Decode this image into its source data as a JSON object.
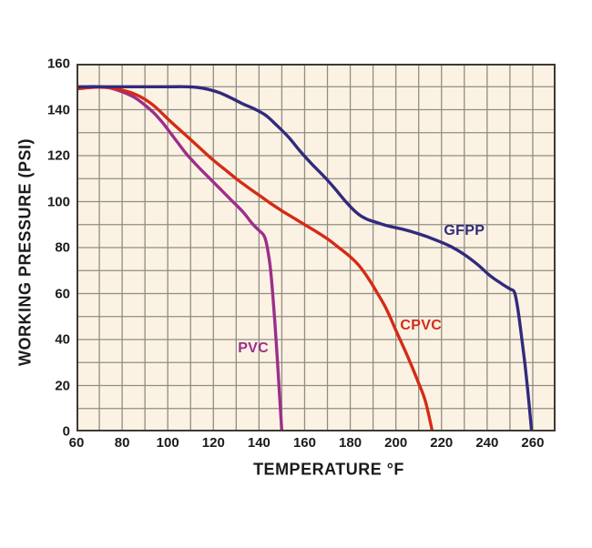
{
  "colors": {
    "figure_bg": "#ffffff",
    "plot_bg": "#fcf2e3",
    "gridline": "#8f8d83",
    "plot_border": "#3d3a34",
    "text": "#1b1b1b"
  },
  "chart_data": {
    "type": "line",
    "title": "",
    "xlabel": "TEMPERATURE °F",
    "ylabel": "WORKING PRESSURE (PSI)",
    "xlim": [
      60,
      270
    ],
    "ylim": [
      0,
      160
    ],
    "x_grid_step": 10,
    "y_grid_step": 10,
    "x_tick_labels": [
      60,
      80,
      100,
      120,
      140,
      160,
      180,
      200,
      220,
      240,
      260
    ],
    "y_tick_labels": [
      0,
      20,
      40,
      60,
      80,
      100,
      120,
      140,
      160
    ],
    "grid": true,
    "legend_position": "inline-labels",
    "series": [
      {
        "name": "PVC",
        "color": "#9b2f8a",
        "label_at": {
          "x": 137.5,
          "y": 36
        },
        "points": [
          [
            60,
            149.3
          ],
          [
            65,
            150
          ],
          [
            70,
            150
          ],
          [
            74,
            149.6
          ],
          [
            78,
            148.5
          ],
          [
            82,
            147
          ],
          [
            86,
            145
          ],
          [
            90,
            142
          ],
          [
            94,
            138.5
          ],
          [
            98,
            134
          ],
          [
            103,
            127.5
          ],
          [
            108,
            121
          ],
          [
            113,
            115.5
          ],
          [
            118,
            110.5
          ],
          [
            123,
            105.5
          ],
          [
            128,
            100.5
          ],
          [
            133,
            95.5
          ],
          [
            137,
            90.5
          ],
          [
            140,
            87.5
          ],
          [
            142,
            85.5
          ],
          [
            143,
            83
          ],
          [
            144,
            78
          ],
          [
            145,
            71
          ],
          [
            146,
            60
          ],
          [
            147,
            47
          ],
          [
            148,
            32
          ],
          [
            149,
            16
          ],
          [
            150,
            0
          ]
        ]
      },
      {
        "name": "CPVC",
        "color": "#d52b17",
        "label_at": {
          "x": 211,
          "y": 46
        },
        "points": [
          [
            60,
            149
          ],
          [
            68,
            149.8
          ],
          [
            75,
            149.5
          ],
          [
            80,
            148.5
          ],
          [
            85,
            147
          ],
          [
            90,
            144.5
          ],
          [
            95,
            140.8
          ],
          [
            100,
            136
          ],
          [
            105,
            131.5
          ],
          [
            110,
            127
          ],
          [
            115,
            122.5
          ],
          [
            120,
            118
          ],
          [
            125,
            114
          ],
          [
            130,
            110
          ],
          [
            135,
            106.3
          ],
          [
            140,
            102.8
          ],
          [
            145,
            99.3
          ],
          [
            150,
            96
          ],
          [
            155,
            93
          ],
          [
            160,
            90
          ],
          [
            165,
            87
          ],
          [
            170,
            83.8
          ],
          [
            175,
            80
          ],
          [
            180,
            76
          ],
          [
            184,
            72
          ],
          [
            188,
            66.5
          ],
          [
            192,
            60
          ],
          [
            196,
            53
          ],
          [
            200,
            44
          ],
          [
            205,
            33
          ],
          [
            210,
            21
          ],
          [
            213,
            13
          ],
          [
            216,
            0
          ]
        ]
      },
      {
        "name": "GFPP",
        "color": "#312a7d",
        "label_at": {
          "x": 230,
          "y": 87
        },
        "points": [
          [
            60,
            150
          ],
          [
            80,
            150
          ],
          [
            100,
            150
          ],
          [
            108,
            150
          ],
          [
            113,
            149.7
          ],
          [
            118,
            148.8
          ],
          [
            123,
            147.3
          ],
          [
            128,
            145
          ],
          [
            133,
            142.5
          ],
          [
            138,
            140.3
          ],
          [
            143,
            137.5
          ],
          [
            148,
            133
          ],
          [
            153,
            128
          ],
          [
            158,
            122
          ],
          [
            163,
            116.5
          ],
          [
            168,
            111.5
          ],
          [
            173,
            106
          ],
          [
            178,
            100
          ],
          [
            183,
            95
          ],
          [
            187,
            92.5
          ],
          [
            192,
            90.8
          ],
          [
            197,
            89.3
          ],
          [
            203,
            88
          ],
          [
            210,
            86
          ],
          [
            217,
            83.5
          ],
          [
            224,
            80.5
          ],
          [
            230,
            77
          ],
          [
            236,
            72.5
          ],
          [
            241,
            68
          ],
          [
            246,
            64.5
          ],
          [
            250,
            62
          ],
          [
            252,
            60.5
          ],
          [
            253.5,
            53
          ],
          [
            255,
            42
          ],
          [
            256.5,
            30
          ],
          [
            258,
            16
          ],
          [
            259.5,
            0
          ]
        ]
      }
    ]
  }
}
